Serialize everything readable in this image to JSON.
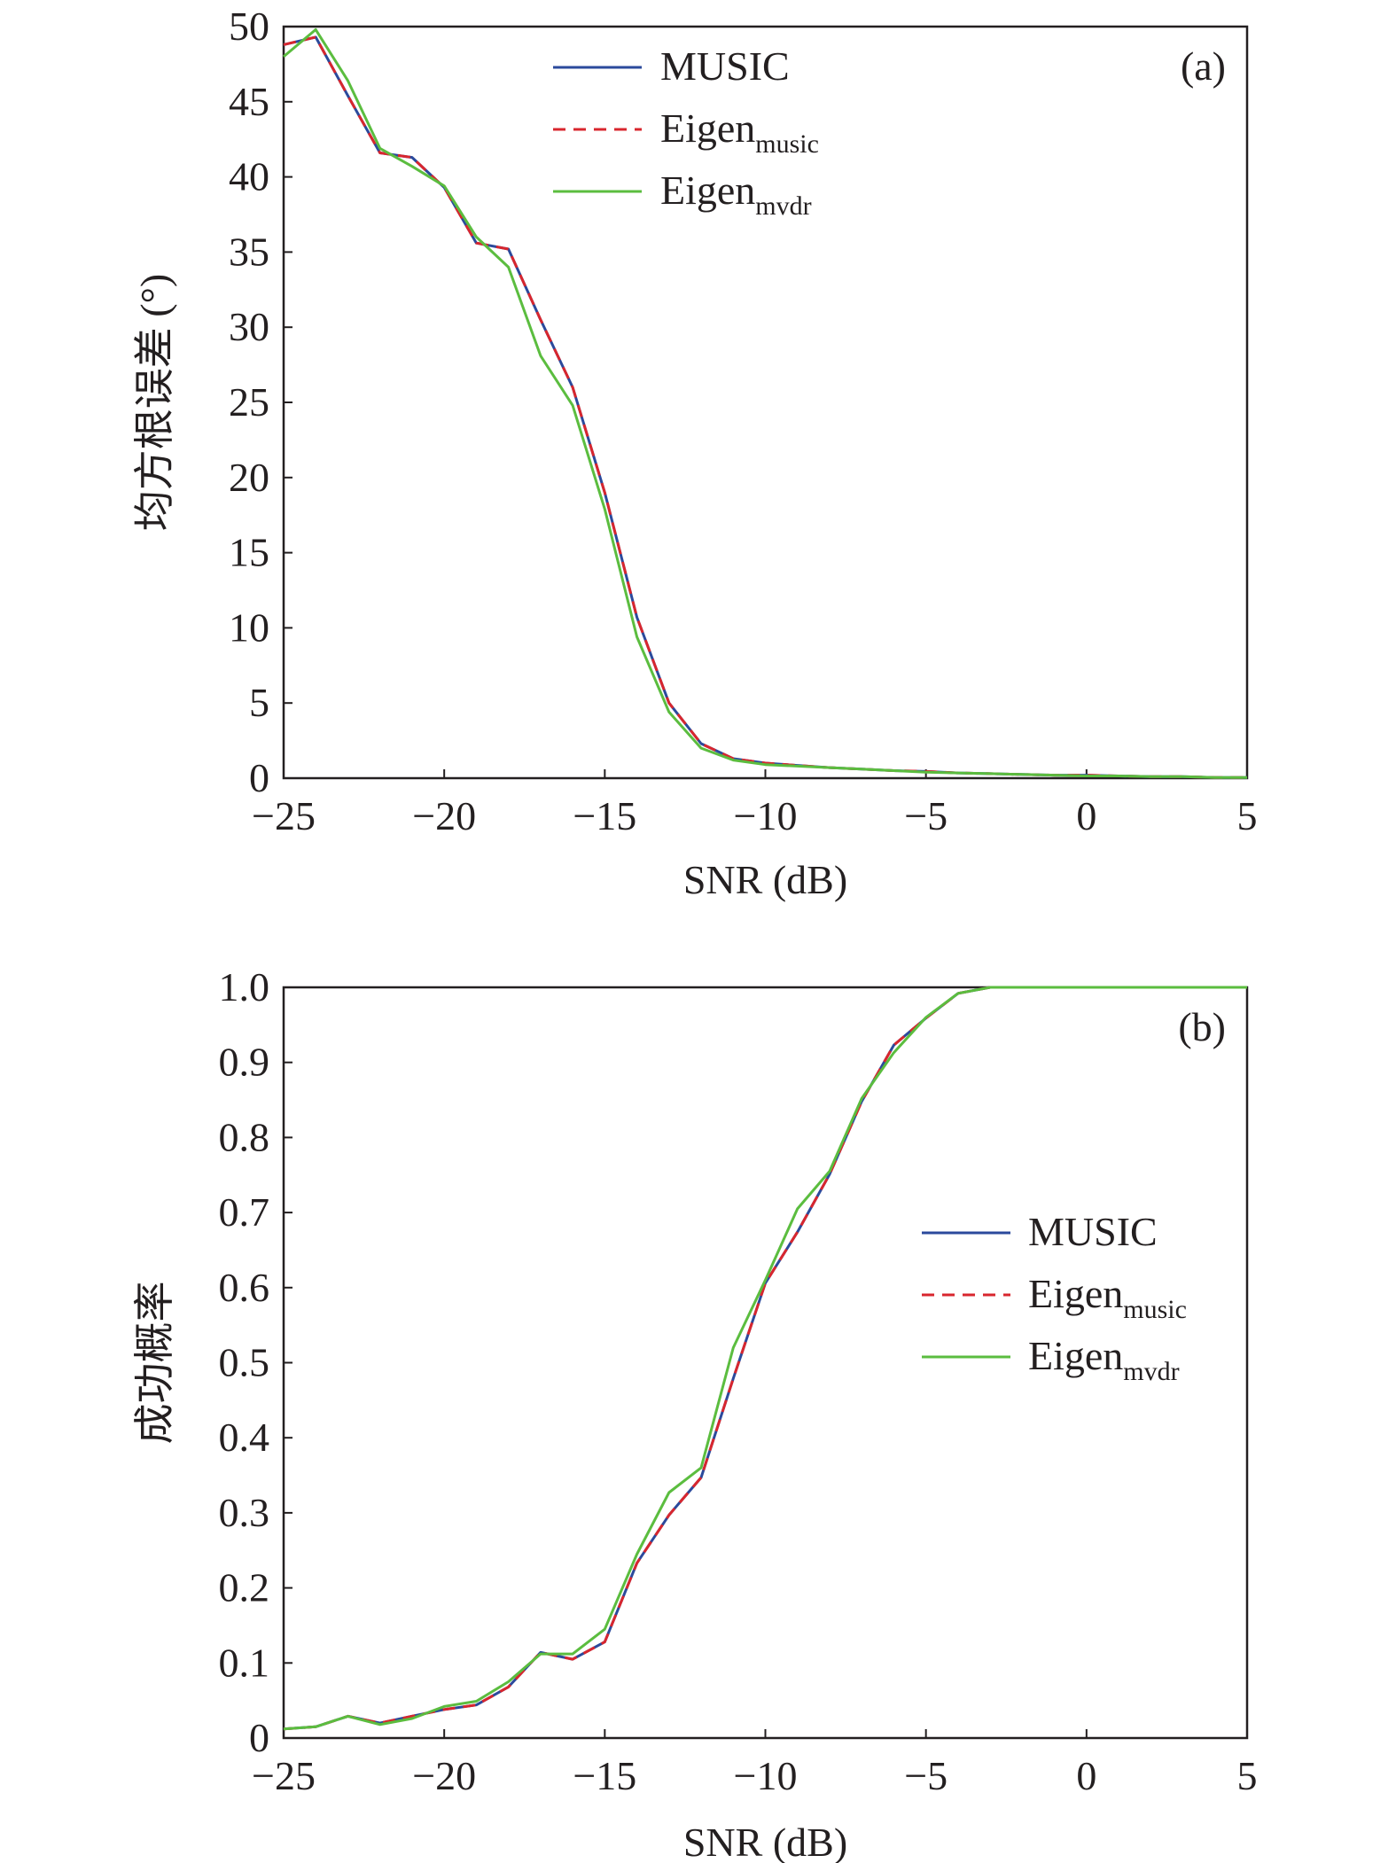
{
  "chart_data": [
    {
      "type": "line",
      "panel": "(a)",
      "xlabel": "SNR (dB)",
      "ylabel": "均方根误差 (°)",
      "xlim": [
        -25,
        5
      ],
      "ylim": [
        0,
        50
      ],
      "xticks": [
        -25,
        -20,
        -15,
        -10,
        -5,
        0,
        5
      ],
      "xtick_labels": [
        "−25",
        "−20",
        "−15",
        "−10",
        "−5",
        "0",
        "5"
      ],
      "yticks": [
        0,
        5,
        10,
        15,
        20,
        25,
        30,
        35,
        40,
        45,
        50
      ],
      "ytick_labels": [
        "0",
        "5",
        "10",
        "15",
        "20",
        "25",
        "30",
        "35",
        "40",
        "45",
        "50"
      ],
      "grid": false,
      "legend_position": "top-center",
      "series": [
        {
          "name": "MUSIC",
          "color": "#2b4a9c",
          "dash": "solid",
          "x": [
            -25,
            -24,
            -23,
            -22,
            -21,
            -20,
            -19,
            -18,
            -17,
            -16,
            -15,
            -14,
            -13,
            -12,
            -11,
            -10,
            -9,
            -8,
            -7,
            -6,
            -5,
            -4,
            -3,
            -2,
            -1,
            0,
            1,
            2,
            3,
            4,
            5
          ],
          "y": [
            48.8,
            49.3,
            45.4,
            41.6,
            41.3,
            39.3,
            35.6,
            35.2,
            30.5,
            26.0,
            19.0,
            10.7,
            5.0,
            2.3,
            1.3,
            1.0,
            0.85,
            0.7,
            0.6,
            0.5,
            0.45,
            0.35,
            0.3,
            0.25,
            0.2,
            0.2,
            0.15,
            0.1,
            0.1,
            0.05,
            0.05
          ]
        },
        {
          "name": "Eigen",
          "name_sub": "music",
          "color": "#d8262e",
          "dash": "dashed",
          "x": [
            -25,
            -24,
            -23,
            -22,
            -21,
            -20,
            -19,
            -18,
            -17,
            -16,
            -15,
            -14,
            -13,
            -12,
            -11,
            -10,
            -9,
            -8,
            -7,
            -6,
            -5,
            -4,
            -3,
            -2,
            -1,
            0,
            1,
            2,
            3,
            4,
            5
          ],
          "y": [
            48.8,
            49.3,
            45.4,
            41.6,
            41.3,
            39.3,
            35.6,
            35.2,
            30.5,
            26.0,
            19.0,
            10.7,
            5.0,
            2.3,
            1.3,
            1.0,
            0.85,
            0.7,
            0.6,
            0.5,
            0.45,
            0.35,
            0.3,
            0.25,
            0.2,
            0.2,
            0.15,
            0.1,
            0.1,
            0.05,
            0.05
          ]
        },
        {
          "name": "Eigen",
          "name_sub": "mvdr",
          "color": "#5bbd3f",
          "dash": "solid",
          "x": [
            -25,
            -24,
            -23,
            -22,
            -21,
            -20,
            -19,
            -18,
            -17,
            -16,
            -15,
            -14,
            -13,
            -12,
            -11,
            -10,
            -9,
            -8,
            -7,
            -6,
            -5,
            -4,
            -3,
            -2,
            -1,
            0,
            1,
            2,
            3,
            4,
            5
          ],
          "y": [
            48.0,
            49.8,
            46.4,
            41.9,
            40.7,
            39.4,
            36.0,
            34.0,
            28.1,
            24.8,
            17.9,
            9.4,
            4.4,
            2.0,
            1.2,
            0.9,
            0.8,
            0.7,
            0.6,
            0.5,
            0.4,
            0.35,
            0.3,
            0.25,
            0.2,
            0.15,
            0.15,
            0.1,
            0.1,
            0.05,
            0.05
          ]
        }
      ]
    },
    {
      "type": "line",
      "panel": "(b)",
      "xlabel": "SNR (dB)",
      "ylabel": "成功概率",
      "xlim": [
        -25,
        5
      ],
      "ylim": [
        0,
        1.0
      ],
      "xticks": [
        -25,
        -20,
        -15,
        -10,
        -5,
        0,
        5
      ],
      "xtick_labels": [
        "−25",
        "−20",
        "−15",
        "−10",
        "−5",
        "0",
        "5"
      ],
      "yticks": [
        0,
        0.1,
        0.2,
        0.3,
        0.4,
        0.5,
        0.6,
        0.7,
        0.8,
        0.9,
        1.0
      ],
      "ytick_labels": [
        "0",
        "0.1",
        "0.2",
        "0.3",
        "0.4",
        "0.5",
        "0.6",
        "0.7",
        "0.8",
        "0.9",
        "1.0"
      ],
      "grid": false,
      "legend_position": "right-middle",
      "series": [
        {
          "name": "MUSIC",
          "color": "#2b4a9c",
          "dash": "solid",
          "x": [
            -25,
            -24,
            -23,
            -22,
            -21,
            -20,
            -19,
            -18,
            -17,
            -16,
            -15,
            -14,
            -13,
            -12,
            -11,
            -10,
            -9,
            -8,
            -7,
            -6,
            -5,
            -4,
            -3,
            -2,
            -1,
            0,
            1,
            2,
            3,
            4,
            5
          ],
          "y": [
            0.012,
            0.015,
            0.029,
            0.02,
            0.029,
            0.038,
            0.044,
            0.068,
            0.114,
            0.105,
            0.128,
            0.233,
            0.297,
            0.347,
            0.479,
            0.606,
            0.674,
            0.751,
            0.848,
            0.923,
            0.959,
            0.992,
            1.0,
            1.0,
            1.0,
            1.0,
            1.0,
            1.0,
            1.0,
            1.0,
            1.0
          ]
        },
        {
          "name": "Eigen",
          "name_sub": "music",
          "color": "#d8262e",
          "dash": "dashed",
          "x": [
            -25,
            -24,
            -23,
            -22,
            -21,
            -20,
            -19,
            -18,
            -17,
            -16,
            -15,
            -14,
            -13,
            -12,
            -11,
            -10,
            -9,
            -8,
            -7,
            -6,
            -5,
            -4,
            -3,
            -2,
            -1,
            0,
            1,
            2,
            3,
            4,
            5
          ],
          "y": [
            0.012,
            0.015,
            0.029,
            0.02,
            0.029,
            0.038,
            0.044,
            0.068,
            0.114,
            0.105,
            0.128,
            0.233,
            0.297,
            0.347,
            0.479,
            0.606,
            0.674,
            0.751,
            0.848,
            0.923,
            0.959,
            0.992,
            1.0,
            1.0,
            1.0,
            1.0,
            1.0,
            1.0,
            1.0,
            1.0,
            1.0
          ]
        },
        {
          "name": "Eigen",
          "name_sub": "mvdr",
          "color": "#5bbd3f",
          "dash": "solid",
          "x": [
            -25,
            -24,
            -23,
            -22,
            -21,
            -20,
            -19,
            -18,
            -17,
            -16,
            -15,
            -14,
            -13,
            -12,
            -11,
            -10,
            -9,
            -8,
            -7,
            -6,
            -5,
            -4,
            -3,
            -2,
            -1,
            0,
            1,
            2,
            3,
            4,
            5
          ],
          "y": [
            0.012,
            0.015,
            0.029,
            0.018,
            0.026,
            0.042,
            0.049,
            0.075,
            0.112,
            0.112,
            0.145,
            0.245,
            0.327,
            0.36,
            0.52,
            0.61,
            0.705,
            0.755,
            0.852,
            0.913,
            0.96,
            0.992,
            1.0,
            1.0,
            1.0,
            1.0,
            1.0,
            1.0,
            1.0,
            1.0,
            1.0
          ]
        }
      ]
    }
  ]
}
